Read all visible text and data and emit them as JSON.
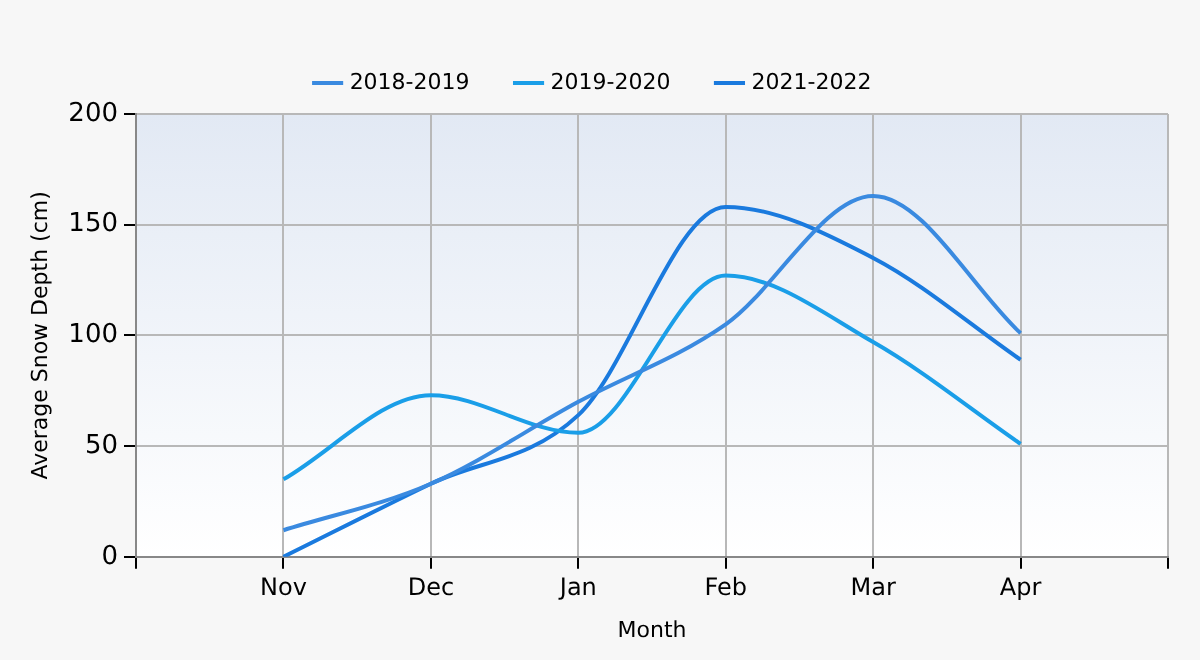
{
  "chart_data": {
    "type": "line",
    "xlabel": "Month",
    "ylabel": "Average Snow Depth (cm)",
    "categories": [
      null,
      "Nov",
      "Dec",
      "Jan",
      "Feb",
      "Mar",
      "Apr",
      null
    ],
    "series": [
      {
        "name": "2018-2019",
        "color": "#3a8ae0",
        "values": [
          null,
          12,
          33,
          70,
          105,
          163,
          101,
          null
        ]
      },
      {
        "name": "2019-2020",
        "color": "#1a9ee8",
        "values": [
          null,
          35,
          73,
          56,
          127,
          97,
          51,
          null
        ]
      },
      {
        "name": "2021-2022",
        "color": "#1a7ade",
        "values": [
          null,
          0,
          33,
          64,
          158,
          135,
          89,
          null
        ]
      }
    ],
    "ylim": [
      0,
      200
    ],
    "yticks": [
      0,
      50,
      100,
      150,
      200
    ],
    "grid": true,
    "legend": "top",
    "marker": "none",
    "line_style": "solid"
  }
}
